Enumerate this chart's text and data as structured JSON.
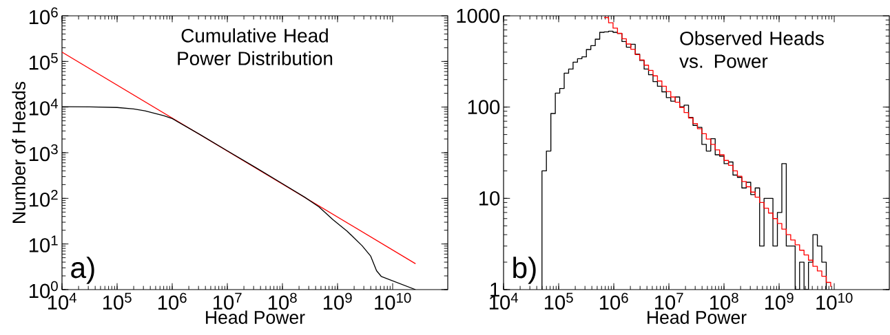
{
  "chart_data": [
    {
      "type": "line",
      "title": "Cumulative Head Power Distribution",
      "xlabel": "Head Power",
      "ylabel": "Number of Heads",
      "annotations": [
        "a)"
      ],
      "log": "xy",
      "xlim": [
        10000,
        100000000000
      ],
      "ylim": [
        1,
        1000000
      ],
      "xticks": [
        {
          "value": 10000,
          "label": "10$^{4}$"
        },
        {
          "value": 100000,
          "label": "10$^{5}$"
        },
        {
          "value": 1000000,
          "label": "10$^{6}$"
        },
        {
          "value": 10000000,
          "label": "10$^{7}$"
        },
        {
          "value": 100000000,
          "label": "10$^{8}$"
        },
        {
          "value": 1000000000,
          "label": "10$^{9}$"
        },
        {
          "value": 10000000000,
          "label": "10$^{10}$"
        }
      ],
      "yticks": [
        {
          "value": 1,
          "label": "10$^{0}$"
        },
        {
          "value": 10,
          "label": "10$^{1}$"
        },
        {
          "value": 100,
          "label": "10$^{2}$"
        },
        {
          "value": 1000,
          "label": "10$^{3}$"
        },
        {
          "value": 10000,
          "label": "10$^{4}$"
        },
        {
          "value": 100000,
          "label": "10$^{5}$"
        },
        {
          "value": 1000000,
          "label": "10$^{6}$"
        }
      ],
      "series": [
        {
          "color": "#ff0000",
          "x": [
            10000,
            26000000000
          ],
          "values": [
            160000,
            3.7
          ]
        },
        {
          "color": "#000000",
          "x": [
            10000,
            32000,
            100000,
            200000,
            320000,
            500000,
            700000,
            1000000,
            3200000,
            10000000,
            32000000,
            100000000,
            250000000,
            460000000,
            830000000,
            1500000000,
            2800000000,
            4000000000,
            5100000000,
            6200000000,
            26000000000
          ],
          "values": [
            10200,
            10100,
            9800,
            9100,
            8300,
            7200,
            6500,
            5600,
            2500,
            1100,
            480,
            210,
            107,
            65,
            34,
            19,
            9.1,
            5.4,
            2.6,
            1.95,
            1
          ]
        }
      ]
    },
    {
      "type": "histogram",
      "title": "Observed Heads vs. Power",
      "xlabel": "Head Power",
      "annotations": [
        "b)"
      ],
      "log": "xy",
      "color": "#000000",
      "xlim": [
        10000,
        100000000000
      ],
      "ylim": [
        1,
        1000
      ],
      "xticks": [
        {
          "value": 10000,
          "label": "10$^{4}$"
        },
        {
          "value": 100000,
          "label": "10$^{5}$"
        },
        {
          "value": 1000000,
          "label": "10$^{6}$"
        },
        {
          "value": 10000000,
          "label": "10$^{7}$"
        },
        {
          "value": 100000000,
          "label": "10$^{8}$"
        },
        {
          "value": 1000000000,
          "label": "10$^{9}$"
        },
        {
          "value": 10000000000,
          "label": "10$^{10}$"
        }
      ],
      "yticks": [
        1,
        10,
        100,
        1000
      ],
      "bins": [
        49800,
        59900,
        72200,
        86900,
        104600,
        125900,
        151600,
        182500,
        219700,
        264500,
        318400,
        383400,
        461500,
        555700,
        669000,
        805400,
        969600,
        1167000,
        1405000,
        1692000,
        2037000,
        2452000,
        2952000,
        3554000,
        4279000,
        5152000,
        6202000,
        7467000,
        8990000,
        10820000,
        13030000,
        15690000,
        18890000,
        22740000,
        27380000,
        32960000,
        39680000,
        47780000,
        57520000,
        69250000,
        83370000,
        100400000,
        120800000,
        145500000,
        175100000,
        210900000,
        253900000,
        305600000,
        368000000,
        443000000,
        533300000,
        642100000,
        773000000,
        930700000,
        1121000000,
        1349000000,
        1624000000,
        1955000000,
        2354000000,
        2834000000,
        3412000000,
        4108000000,
        4946000000,
        5954000000,
        7169000000
      ],
      "values": [
        20,
        33,
        85,
        142,
        160,
        235,
        261,
        311,
        339,
        355,
        427,
        471,
        554,
        659,
        667,
        679,
        659,
        641,
        523,
        453,
        488,
        380,
        324,
        261,
        226,
        190,
        169,
        147,
        127,
        116,
        129,
        101,
        105,
        77,
        63,
        60,
        39,
        33,
        45,
        30,
        29,
        24,
        25,
        18,
        17,
        13,
        15,
        11,
        13,
        3,
        10,
        10,
        3,
        7,
        24,
        3,
        3,
        null,
        2,
        null,
        2,
        4,
        3,
        2
      ],
      "series": [
        {
          "type": "step",
          "color": "#ff0000",
          "x": [
            669000,
            805400,
            969600,
            1167000,
            1405000,
            1692000,
            2037000,
            2452000,
            2952000,
            3554000,
            4279000,
            5152000,
            6202000,
            7467000,
            8990000,
            10820000,
            13030000,
            15690000,
            18890000,
            22740000,
            27380000,
            32960000,
            39680000,
            47780000,
            57520000,
            69250000,
            83370000,
            100400000,
            120800000,
            145500000,
            175100000,
            210900000,
            253900000,
            305600000,
            368000000,
            443000000,
            533300000,
            642100000,
            773000000,
            930700000,
            1121000000,
            1349000000,
            1624000000,
            1955000000,
            2354000000,
            2834000000,
            3412000000,
            4108000000,
            4946000000,
            5954000000,
            7169000000,
            8630000000
          ],
          "values": [
            958,
            838,
            733,
            642,
            561,
            491,
            430,
            376,
            329,
            288,
            252,
            220,
            193,
            169,
            148,
            129,
            113,
            99,
            87,
            76,
            66,
            58,
            51,
            44.6,
            39,
            34,
            30,
            26,
            23,
            20,
            17.5,
            15.3,
            13.4,
            11.7,
            10.3,
            9.0,
            7.8,
            6.9,
            6.0,
            5.3,
            4.6,
            4.0,
            3.5,
            3.1,
            2.7,
            2.4,
            2.1,
            1.8,
            1.6,
            1.4,
            1.2,
            1.07
          ]
        }
      ]
    }
  ]
}
